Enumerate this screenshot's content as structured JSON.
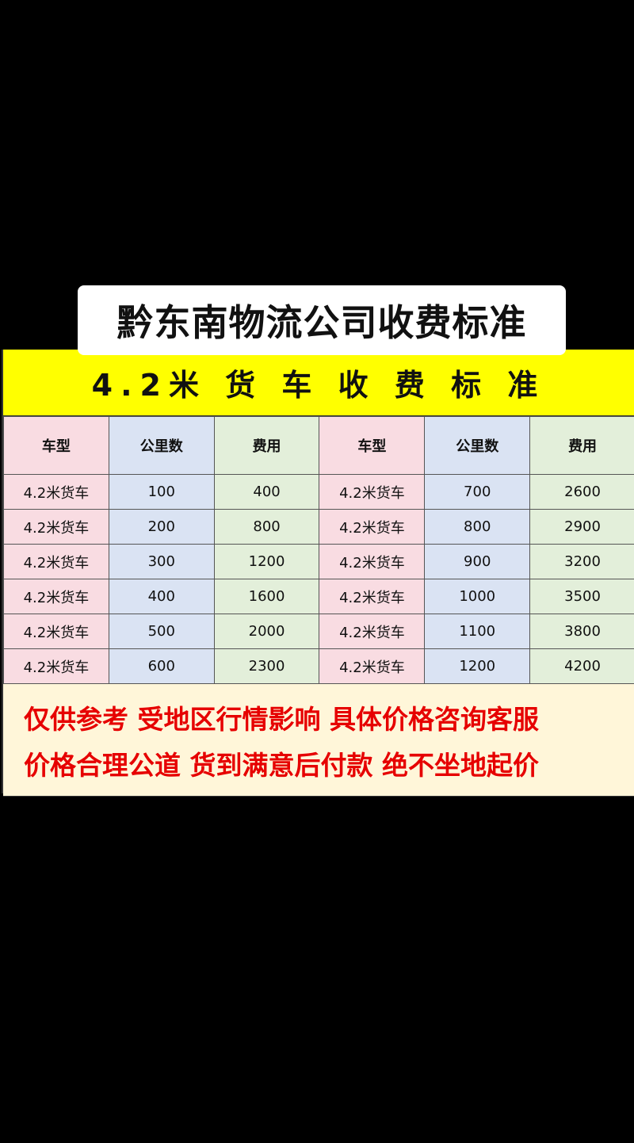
{
  "title": "黔东南物流公司收费标准",
  "banner": "4.2米 货 车 收 费 标 准",
  "table": {
    "headers": [
      "车型",
      "公里数",
      "费用",
      "车型",
      "公里数",
      "费用"
    ],
    "rows": [
      [
        "4.2米货车",
        "100",
        "400",
        "4.2米货车",
        "700",
        "2600"
      ],
      [
        "4.2米货车",
        "200",
        "800",
        "4.2米货车",
        "800",
        "2900"
      ],
      [
        "4.2米货车",
        "300",
        "1200",
        "4.2米货车",
        "900",
        "3200"
      ],
      [
        "4.2米货车",
        "400",
        "1600",
        "4.2米货车",
        "1000",
        "3500"
      ],
      [
        "4.2米货车",
        "500",
        "2000",
        "4.2米货车",
        "1100",
        "3800"
      ],
      [
        "4.2米货车",
        "600",
        "2300",
        "4.2米货车",
        "1200",
        "4200"
      ]
    ]
  },
  "footer": {
    "line1": "仅供参考 受地区行情影响 具体价格咨询客服",
    "line2": "价格合理公道 货到满意后付款 绝不坐地起价"
  },
  "colors": {
    "banner": "#ffff00",
    "vehicle_col": "#f9dce2",
    "km_col": "#dae3f3",
    "fee_col": "#e3efda",
    "footer_text": "#e60000",
    "footer_bg": "#fff6d9"
  }
}
